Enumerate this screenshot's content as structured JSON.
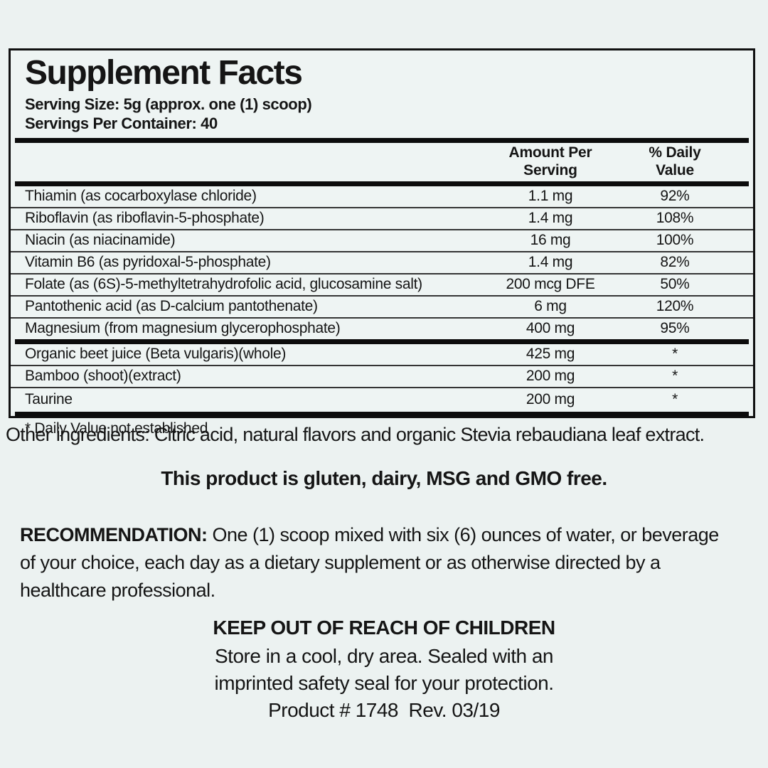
{
  "colors": {
    "page_background": "#ecf2f1",
    "panel_background": "#eef4f3",
    "ink": "#151515",
    "thick_bar": "#0c0c0c",
    "row_divider": "#343434"
  },
  "panel": {
    "title": "Supplement Facts",
    "serving_size": "Serving Size: 5g (approx. one (1) scoop)",
    "servings_per_container": "Servings Per Container: 40",
    "amount_header": [
      "Amount Per",
      "Serving"
    ],
    "dv_header": [
      "% Daily",
      "Value"
    ],
    "main_rows": [
      {
        "name": "Thiamin (as cocarboxylase chloride)",
        "amount": "1.1 mg",
        "dv": "92%"
      },
      {
        "name": "Riboflavin (as riboflavin-5-phosphate)",
        "amount": "1.4 mg",
        "dv": "108%"
      },
      {
        "name": "Niacin (as niacinamide)",
        "amount": "16 mg",
        "dv": "100%"
      },
      {
        "name": "Vitamin B6 (as pyridoxal-5-phosphate)",
        "amount": "1.4 mg",
        "dv": "82%"
      },
      {
        "name": "Folate (as (6S)-5-methyltetrahydrofolic acid, glucosamine salt)",
        "amount": "200 mcg DFE",
        "dv": "50%"
      },
      {
        "name": "Pantothenic acid (as D-calcium pantothenate)",
        "amount": "6 mg",
        "dv": "120%"
      },
      {
        "name": "Magnesium (from magnesium glycerophosphate)",
        "amount": "400 mg",
        "dv": "95%"
      }
    ],
    "other_rows": [
      {
        "name": "Organic beet juice (Beta vulgaris)(whole)",
        "amount": "425 mg",
        "dv": "*"
      },
      {
        "name": "Bamboo (shoot)(extract)",
        "amount": "200 mg",
        "dv": "*"
      },
      {
        "name": "Taurine",
        "amount": "200 mg",
        "dv": "*"
      }
    ],
    "footnote": "* Daily Value not established"
  },
  "other_ingredients": "Other ingredients: Citric acid, natural flavors and organic Stevia rebaudiana leaf extract.",
  "free_claim": "This product is gluten, dairy, MSG and GMO free.",
  "recommendation": {
    "label": "RECOMMENDATION:",
    "text": "One (1) scoop mixed with six (6) ounces of water, or beverage of your choice, each day as a dietary supplement or as otherwise directed by a healthcare professional."
  },
  "warning": "KEEP OUT OF REACH OF CHILDREN",
  "storage_line1": "Store in a cool, dry area. Sealed with an",
  "storage_line2": "imprinted safety seal for your protection.",
  "product_line": "Product # 1748  Rev. 03/19"
}
